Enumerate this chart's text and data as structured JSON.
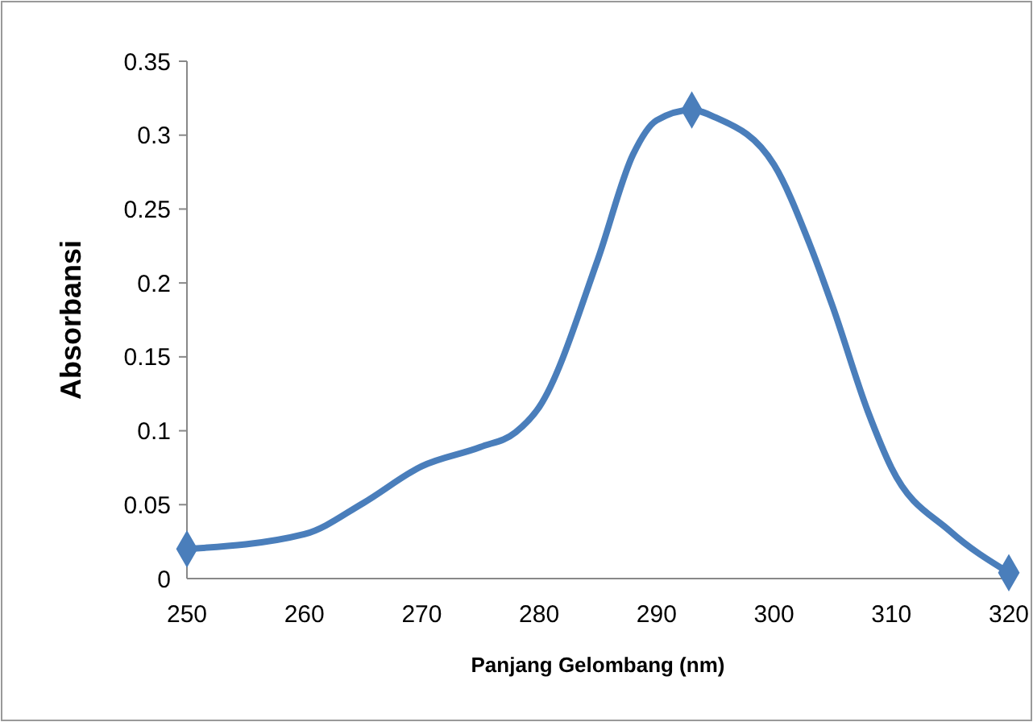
{
  "chart_data": {
    "type": "line",
    "xlabel": "Panjang Gelombang (nm)",
    "ylabel": "Absorbansi",
    "xlim": [
      250,
      320
    ],
    "ylim": [
      0,
      0.35
    ],
    "xticks": [
      250,
      260,
      270,
      280,
      290,
      300,
      310,
      320
    ],
    "yticks": [
      0,
      0.05,
      0.1,
      0.15,
      0.2,
      0.25,
      0.3,
      0.35
    ],
    "line_style": "solid",
    "series": [
      {
        "color": "#4a7ebb",
        "marker": "none",
        "x": [
          250,
          260,
          265,
          270,
          275,
          278,
          280,
          285,
          288,
          290,
          293,
          295,
          300,
          303,
          305,
          308,
          310,
          315,
          320
        ],
        "values": [
          0.02,
          0.03,
          0.051,
          0.076,
          0.089,
          0.099,
          0.116,
          0.216,
          0.287,
          0.31,
          0.317,
          0.312,
          0.28,
          0.227,
          0.184,
          0.113,
          0.075,
          0.032,
          0.004
        ]
      },
      {
        "type": "scatter",
        "color": "#4a7ebb",
        "marker": "diamond",
        "x": [
          250,
          293,
          320
        ],
        "values": [
          0.02,
          0.317,
          0.004
        ]
      }
    ]
  }
}
